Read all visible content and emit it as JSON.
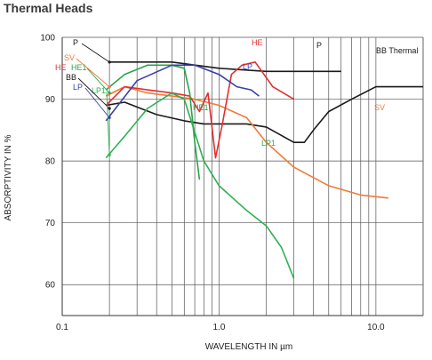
{
  "chart_data": {
    "type": "line",
    "title": "Thermal Heads",
    "xlabel": "WAVELENGTH IN µm",
    "ylabel": "ABSORPTIVITY IN %",
    "xscale": "log",
    "xlim": [
      0.1,
      20
    ],
    "ylim": [
      55,
      100
    ],
    "xticks": [
      {
        "value": 0.1,
        "label": "0.1"
      },
      {
        "value": 1.0,
        "label": "1.0"
      },
      {
        "value": 10,
        "label": "10.0"
      }
    ],
    "yticks": [
      60,
      70,
      80,
      90,
      100
    ],
    "grid": true,
    "series": [
      {
        "name": "BB Thermal",
        "color": "#1a1a1a",
        "x": [
          0.19,
          0.25,
          0.4,
          0.6,
          0.8,
          1.0,
          1.5,
          2.0,
          3.0,
          3.5,
          4.0,
          5.0,
          7.0,
          10.0,
          20.0
        ],
        "y": [
          89,
          89.5,
          87.5,
          86.5,
          86,
          86,
          86,
          85.5,
          83,
          83,
          85,
          88,
          90,
          92,
          92
        ]
      },
      {
        "name": "P",
        "color": "#1a1a1a",
        "x": [
          0.2,
          0.5,
          1.0,
          2.0,
          6.0
        ],
        "y": [
          96,
          96,
          95,
          94.5,
          94.5
        ]
      },
      {
        "name": "SV",
        "color": "#f07a3a",
        "x": [
          0.19,
          0.25,
          0.35,
          0.5,
          0.7,
          1.0,
          1.5,
          2.0,
          3.0,
          5.0,
          8.0,
          12.0
        ],
        "y": [
          90.5,
          92,
          91,
          90.5,
          90,
          89,
          87,
          83,
          79,
          76,
          74.5,
          74
        ]
      },
      {
        "name": "HE",
        "color": "#e03030",
        "x": [
          0.19,
          0.25,
          0.35,
          0.5,
          0.65,
          0.75,
          0.85,
          0.95,
          1.05,
          1.2,
          1.4,
          1.7,
          2.2,
          3.0
        ],
        "y": [
          89,
          92,
          91.5,
          91,
          90.5,
          88,
          91,
          80.5,
          86,
          94,
          95.5,
          96,
          92,
          90
        ]
      },
      {
        "name": "HE1",
        "color": "#2aa34a",
        "x": [
          0.19,
          0.25,
          0.35,
          0.5,
          0.6,
          0.65,
          0.7,
          0.75
        ],
        "y": [
          91.5,
          94,
          95.5,
          95.5,
          95,
          91,
          83,
          77
        ]
      },
      {
        "name": "LP",
        "color": "#3b3fa8",
        "x": [
          0.19,
          0.3,
          0.5,
          0.7,
          1.0,
          1.3,
          1.6,
          1.8
        ],
        "y": [
          86.5,
          93,
          95.5,
          95.5,
          94,
          92,
          91.5,
          90.5
        ]
      },
      {
        "name": "LP1",
        "color": "#2fb050",
        "x": [
          0.19,
          0.25,
          0.35,
          0.5,
          0.6,
          0.8,
          1.0,
          1.5,
          2.0,
          2.5,
          3.0
        ],
        "y": [
          80.5,
          84,
          88.5,
          91,
          90,
          80,
          76,
          72,
          69.5,
          66,
          61
        ]
      }
    ],
    "annotations": [
      {
        "text": "P",
        "color": "#1a1a1a"
      },
      {
        "text": "SV",
        "color": "#f07a3a"
      },
      {
        "text": "HE",
        "color": "#e03030"
      },
      {
        "text": "HE1",
        "color": "#2aa34a"
      },
      {
        "text": "BB",
        "color": "#1a1a1a"
      },
      {
        "text": "LP",
        "color": "#3b3fa8"
      },
      {
        "text": "LP1",
        "color": "#2fb050"
      },
      {
        "text": "HE",
        "color": "#e03030"
      },
      {
        "text": "P",
        "color": "#1a1a1a"
      },
      {
        "text": "BB Thermal",
        "color": "#1a1a1a"
      },
      {
        "text": "LP",
        "color": "#3b3fa8"
      },
      {
        "text": "HE1",
        "color": "#2aa34a"
      },
      {
        "text": "LP1",
        "color": "#2fb050"
      },
      {
        "text": "SV",
        "color": "#f07a3a"
      }
    ]
  }
}
